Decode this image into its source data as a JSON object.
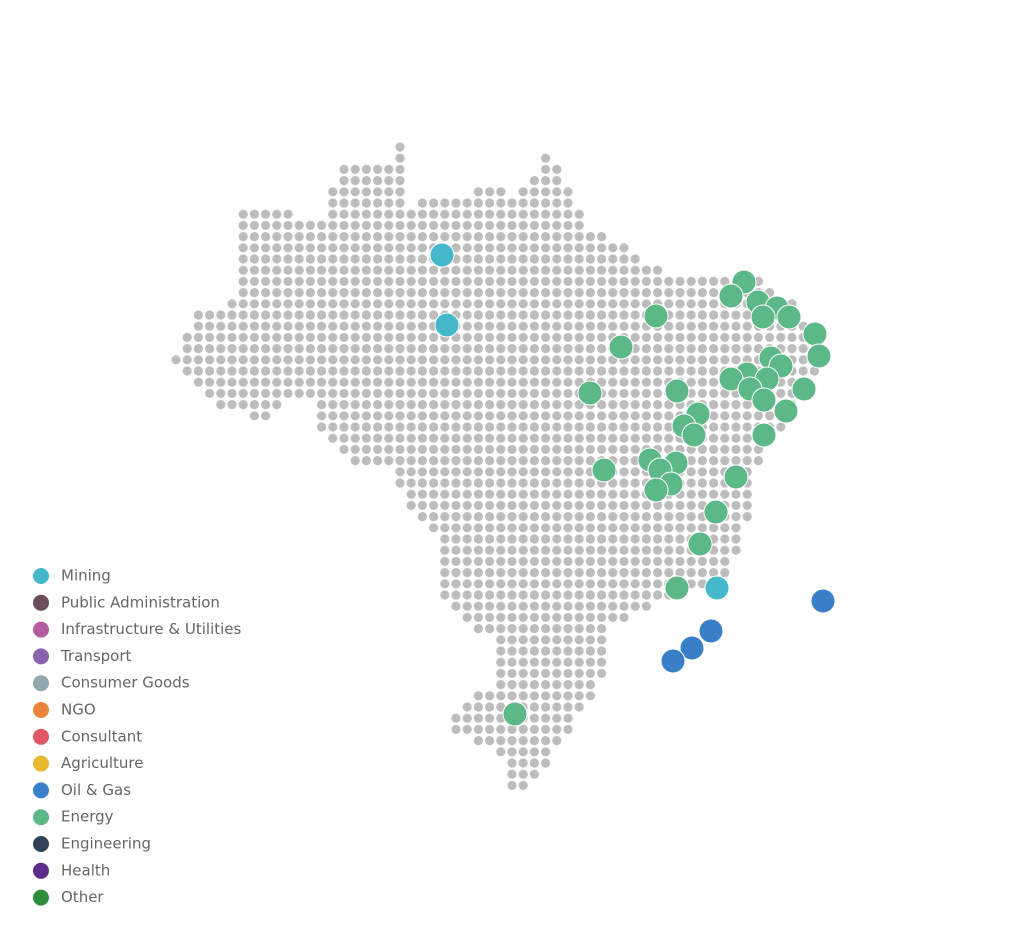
{
  "legend": {
    "items": [
      {
        "name": "Mining",
        "color": "#45b8cc"
      },
      {
        "name": "Public Administration",
        "color": "#6b4f5a"
      },
      {
        "name": "Infrastructure & Utilities",
        "color": "#b45ca0"
      },
      {
        "name": "Transport",
        "color": "#8a63b0"
      },
      {
        "name": "Consumer Goods",
        "color": "#8fa8ad"
      },
      {
        "name": "NGO",
        "color": "#e8843c"
      },
      {
        "name": "Consultant",
        "color": "#e05a66"
      },
      {
        "name": "Agriculture",
        "color": "#e8b830"
      },
      {
        "name": "Oil & Gas",
        "color": "#3a80c8"
      },
      {
        "name": "Energy",
        "color": "#5cb887"
      },
      {
        "name": "Engineering",
        "color": "#2f4258"
      },
      {
        "name": "Health",
        "color": "#5e2d8c"
      },
      {
        "name": "Other",
        "color": "#2e8c3a"
      }
    ]
  }
}
